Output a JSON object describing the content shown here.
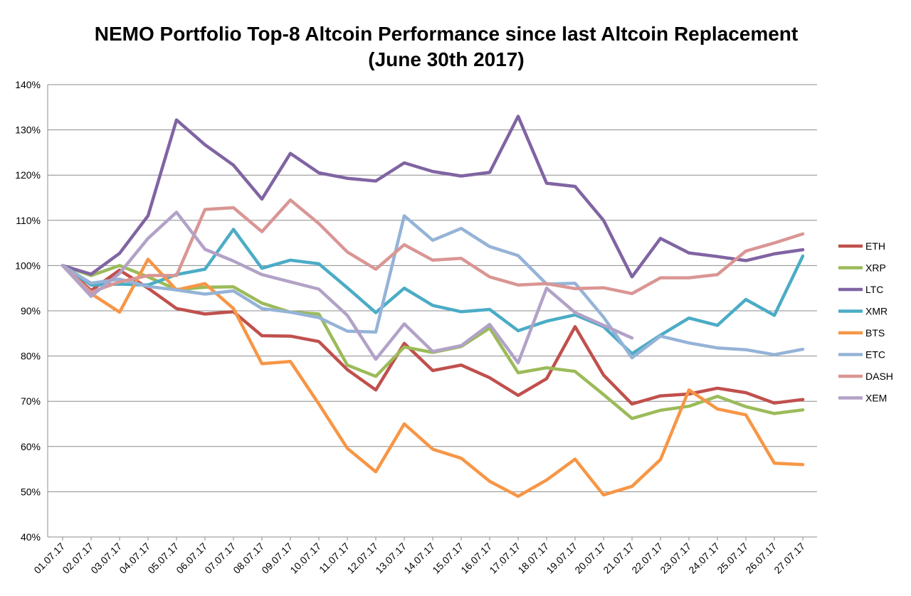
{
  "chart_data": {
    "type": "line",
    "title_line1": "NEMO Portfolio Top-8 Altcoin Performance since last Altcoin Replacement",
    "title_line2": "(June 30th 2017)",
    "xlabel": "",
    "ylabel": "",
    "ylim": [
      40,
      140
    ],
    "y_ticks": [
      "40%",
      "50%",
      "60%",
      "70%",
      "80%",
      "90%",
      "100%",
      "110%",
      "120%",
      "130%",
      "140%"
    ],
    "grid": "horizontal",
    "legend_position": "right",
    "categories": [
      "01.07.17",
      "02.07.17",
      "03.07.17",
      "04.07.17",
      "05.07.17",
      "06.07.17",
      "07.07.17",
      "08.07.17",
      "09.07.17",
      "10.07.17",
      "11.07.17",
      "12.07.17",
      "13.07.17",
      "14.07.17",
      "15.07.17",
      "16.07.17",
      "17.07.17",
      "18.07.17",
      "19.07.17",
      "20.07.17",
      "21.07.17",
      "22.07.17",
      "23.07.17",
      "24.07.17",
      "25.07.17",
      "26.07.17",
      "27.07.17"
    ],
    "series": [
      {
        "name": "ETH",
        "color": "#c0504d",
        "values": [
          100,
          94.5,
          99,
          95,
          90.5,
          89.3,
          89.8,
          84.5,
          84.4,
          83.2,
          77,
          72.5,
          82.8,
          76.8,
          78,
          75.2,
          71.3,
          75,
          86.5,
          75.8,
          69.4,
          71.2,
          71.6,
          72.9,
          71.9,
          69.6,
          70.4
        ]
      },
      {
        "name": "XRP",
        "color": "#9bbb59",
        "values": [
          100,
          97.8,
          100,
          97.5,
          94.7,
          95.2,
          95.3,
          91.7,
          89.7,
          89.3,
          78,
          75.5,
          82,
          80.8,
          82.1,
          86.2,
          76.3,
          77.4,
          76.6,
          71.5,
          66.2,
          68,
          68.9,
          71.1,
          68.8,
          67.3,
          68.1
        ]
      },
      {
        "name": "LTC",
        "color": "#8064a2",
        "values": [
          100,
          98.1,
          102.7,
          111,
          132.2,
          126.7,
          122.2,
          114.7,
          124.8,
          120.5,
          119.3,
          118.7,
          122.7,
          120.8,
          119.8,
          120.6,
          133,
          118.2,
          117.5,
          110,
          97.5,
          106,
          102.8,
          102,
          101.1,
          102.6,
          103.5
        ]
      },
      {
        "name": "XMR",
        "color": "#4bacc6",
        "values": [
          100,
          95.7,
          95.9,
          95.7,
          98,
          99.2,
          108,
          99.4,
          101.2,
          100.4,
          95.1,
          89.6,
          95,
          91.2,
          89.8,
          90.3,
          85.6,
          87.7,
          89.1,
          86.5,
          80.5,
          84.6,
          88.4,
          86.8,
          92.5,
          89,
          102.1
        ]
      },
      {
        "name": "BTS",
        "color": "#f79646",
        "values": [
          100,
          93.8,
          89.7,
          101.4,
          94.6,
          96,
          90.5,
          78.3,
          78.8,
          69.4,
          59.6,
          54.4,
          65,
          59.4,
          57.4,
          52.3,
          49,
          52.6,
          57.2,
          49.3,
          51.2,
          57.1,
          72.5,
          68.3,
          67,
          56.3,
          56
        ]
      },
      {
        "name": "ETC",
        "color": "#95b3d7",
        "values": [
          100,
          96.1,
          97,
          95.4,
          94.6,
          93.7,
          94.4,
          90.5,
          89.7,
          88.5,
          85.5,
          85.3,
          111,
          105.6,
          108.2,
          104.2,
          102.2,
          95.9,
          96.1,
          88.6,
          79.6,
          84.4,
          82.9,
          81.8,
          81.4,
          80.3,
          81.5
        ]
      },
      {
        "name": "DASH",
        "color": "#d99694",
        "values": [
          100,
          94.1,
          96.4,
          97.8,
          97.8,
          112.4,
          112.8,
          107.5,
          114.5,
          109.3,
          103,
          99.2,
          104.6,
          101.2,
          101.6,
          97.5,
          95.7,
          96,
          94.9,
          95.1,
          93.8,
          97.3,
          97.3,
          98,
          103.2,
          105,
          107
        ]
      },
      {
        "name": "XEM",
        "color": "#b2a2c7",
        "values": [
          100,
          93.2,
          98.3,
          106,
          111.8,
          103.6,
          101,
          98,
          96.4,
          94.8,
          89,
          79.3,
          87.1,
          81,
          82.3,
          87,
          78.5,
          95,
          89.6,
          86.8,
          84,
          null,
          null,
          null,
          null,
          null,
          null
        ]
      }
    ]
  }
}
